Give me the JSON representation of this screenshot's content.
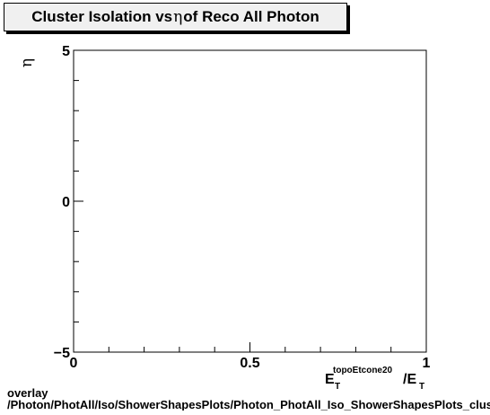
{
  "title_parts": {
    "before": "Cluster Isolation vs ",
    "eta": "η",
    "after": " of Reco All Photon"
  },
  "footer": {
    "line1": "overlay",
    "line2": "/Photon/PhotAll/Iso/ShowerShapesPlots/Photon_PhotAll_Iso_ShowerShapesPlots_clus"
  },
  "chart_data": {
    "type": "scatter",
    "title": "Cluster Isolation vs η of Reco All Photon",
    "xlim": [
      0,
      1
    ],
    "ylim": [
      -5,
      5
    ],
    "xlabel": {
      "main": "E",
      "sub": "T",
      "sup": "topoEtcone20",
      "tail": "/E",
      "tail_sub": "T"
    },
    "ylabel": "η",
    "x_ticks": [
      {
        "value": 0,
        "label": "0"
      },
      {
        "value": 0.5,
        "label": "0.5"
      },
      {
        "value": 1,
        "label": "1"
      }
    ],
    "y_ticks": [
      {
        "value": 5,
        "label": "5"
      },
      {
        "value": 0,
        "label": "0"
      },
      {
        "value": -5,
        "label": "−5"
      }
    ],
    "x_minor_step": 0.1,
    "y_minor_step": 1,
    "points": [],
    "grid": false
  }
}
